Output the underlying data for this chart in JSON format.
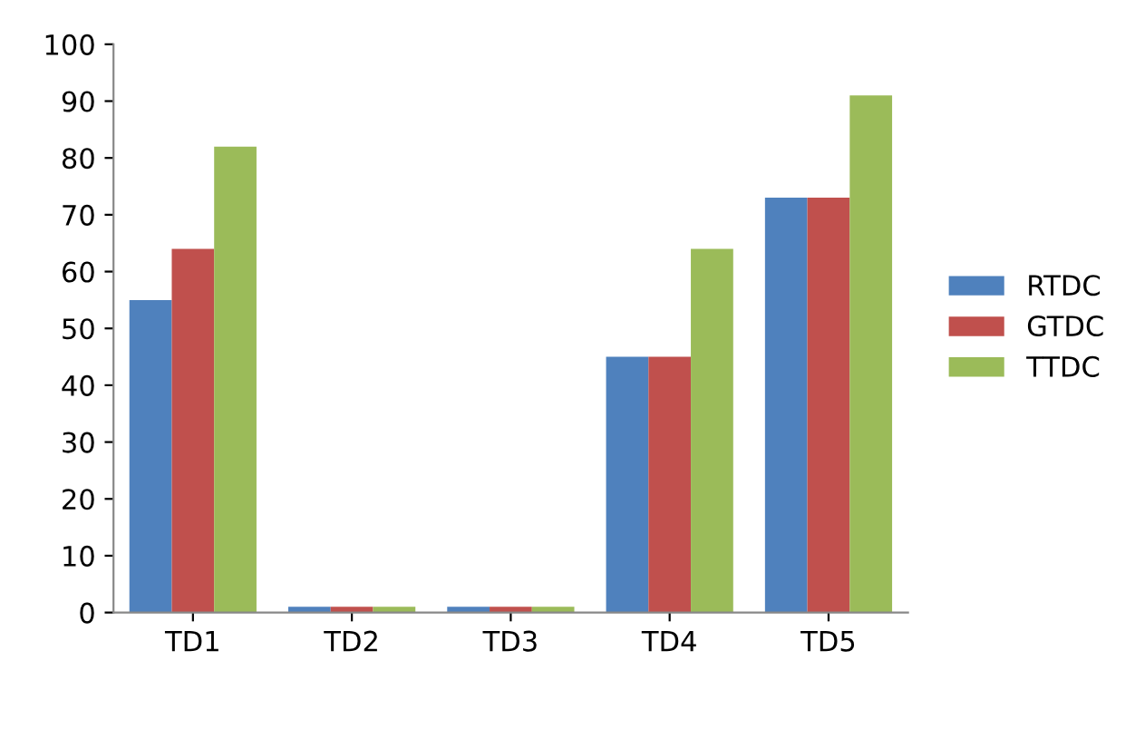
{
  "chart_data": {
    "type": "bar",
    "categories": [
      "TD1",
      "TD2",
      "TD3",
      "TD4",
      "TD5"
    ],
    "series": [
      {
        "name": "RTDC",
        "color": "#4f81bd",
        "values": [
          55,
          1,
          1,
          45,
          73
        ]
      },
      {
        "name": "GTDC",
        "color": "#c0504d",
        "values": [
          64,
          1,
          1,
          45,
          73
        ]
      },
      {
        "name": "TTDC",
        "color": "#9bbb59",
        "values": [
          82,
          1,
          1,
          64,
          91
        ]
      }
    ],
    "ylim": [
      0,
      100
    ],
    "yticks": [
      0,
      10,
      20,
      30,
      40,
      50,
      60,
      70,
      80,
      90,
      100
    ],
    "grid": false,
    "legend": "right"
  }
}
